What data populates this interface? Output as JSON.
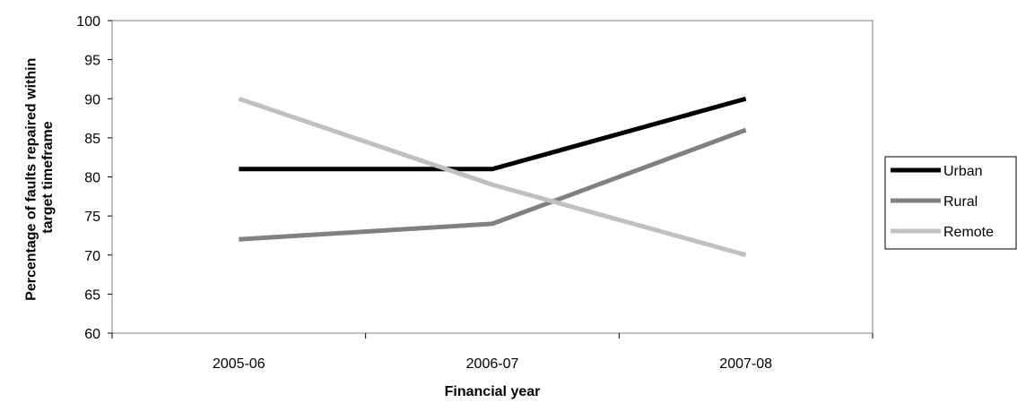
{
  "chart_data": {
    "type": "line",
    "title": "",
    "xlabel": "Financial year",
    "ylabel_lines": [
      "Percentage of faults repaired within",
      "target timeframe"
    ],
    "categories": [
      "2005-06",
      "2006-07",
      "2007-08"
    ],
    "ylim": [
      60,
      100
    ],
    "yticks": [
      "60",
      "65",
      "70",
      "75",
      "80",
      "85",
      "90",
      "95",
      "100"
    ],
    "grid": false,
    "legend_position": "right",
    "series": [
      {
        "name": "Urban",
        "values": [
          81,
          81,
          90
        ],
        "color": "#000000"
      },
      {
        "name": "Rural",
        "values": [
          72,
          74,
          86
        ],
        "color": "#808080"
      },
      {
        "name": "Remote",
        "values": [
          90,
          79,
          70
        ],
        "color": "#c0c0c0"
      }
    ]
  }
}
